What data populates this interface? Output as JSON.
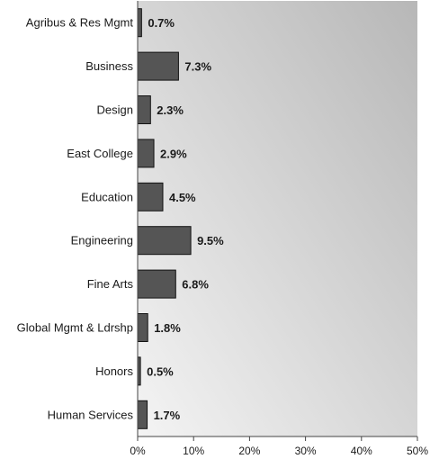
{
  "chart_data": {
    "type": "bar",
    "orientation": "horizontal",
    "categories": [
      "Agribus & Res Mgmt",
      "Business",
      "Design",
      "East College",
      "Education",
      "Engineering",
      "Fine Arts",
      "Global Mgmt & Ldrshp",
      "Honors",
      "Human Services"
    ],
    "values": [
      0.7,
      7.3,
      2.3,
      2.9,
      4.5,
      9.5,
      6.8,
      1.8,
      0.5,
      1.7
    ],
    "value_labels": [
      "0.7%",
      "7.3%",
      "2.3%",
      "2.9%",
      "4.5%",
      "9.5%",
      "6.8%",
      "1.8%",
      "0.5%",
      "1.7%"
    ],
    "xlim": [
      0,
      50
    ],
    "x_ticks": [
      0,
      10,
      20,
      30,
      40,
      50
    ],
    "x_tick_labels": [
      "0%",
      "10%",
      "20%",
      "30%",
      "40%",
      "50%"
    ],
    "title": "",
    "xlabel": "",
    "ylabel": "",
    "grid": false,
    "colors": {
      "bar_fill": "#555555",
      "bar_stroke": "#111111",
      "plot_bg_light": "#f4f4f4",
      "plot_bg_dark": "#b7b7b7",
      "axis": "#444444"
    }
  }
}
